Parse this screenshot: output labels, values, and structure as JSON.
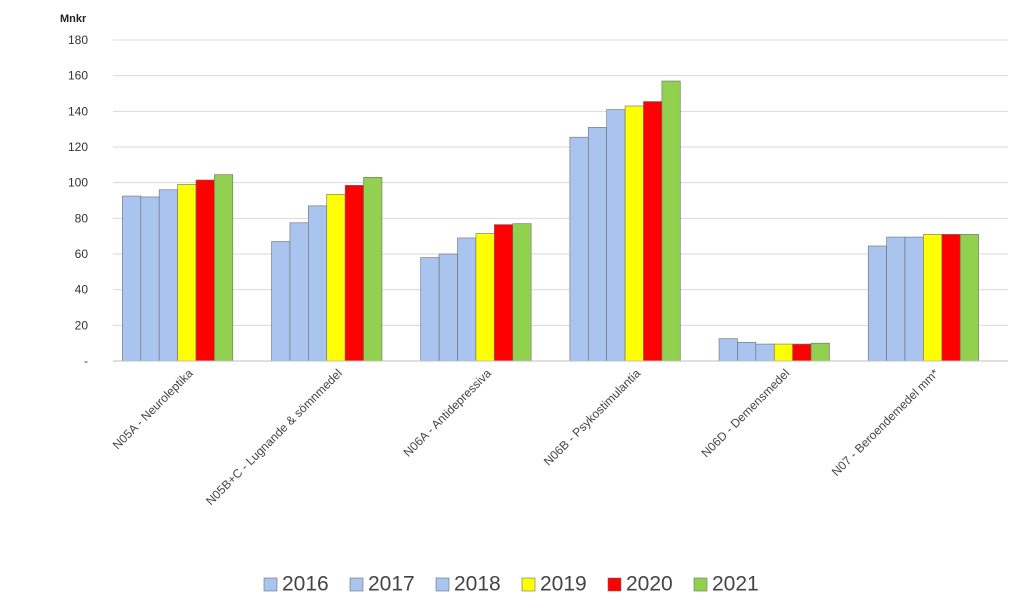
{
  "chart_data": {
    "type": "bar",
    "ylabel": "Mnkr",
    "ylim": [
      0,
      180
    ],
    "yticks": [
      0,
      20,
      40,
      60,
      80,
      100,
      120,
      140,
      160,
      180
    ],
    "ytick_labels": [
      "-",
      "20",
      "40",
      "60",
      "80",
      "100",
      "120",
      "140",
      "160",
      "180"
    ],
    "grid": true,
    "legend_position": "bottom",
    "categories": [
      "N05A - Neuroleptika",
      "N05B+C - Lugnande & sömnmedel",
      "N06A - Antidepressiva",
      "N06B - Psykostimulantia",
      "N06D - Demensmedel",
      "N07 - Beroendemedel mm*"
    ],
    "series": [
      {
        "name": "2016",
        "color": "#a9c4ef",
        "values": [
          92.5,
          67,
          58,
          125.5,
          12.5,
          64.5
        ]
      },
      {
        "name": "2017",
        "color": "#a9c4ef",
        "values": [
          92,
          77.5,
          60,
          131,
          10.5,
          69.5
        ]
      },
      {
        "name": "2018",
        "color": "#a9c4ef",
        "values": [
          96,
          87,
          69,
          141,
          9.5,
          69.5
        ]
      },
      {
        "name": "2019",
        "color": "#ffff00",
        "values": [
          99,
          93.5,
          71.5,
          143,
          9.5,
          71
        ]
      },
      {
        "name": "2020",
        "color": "#ff0000",
        "values": [
          101.5,
          98.5,
          76.5,
          145.5,
          9.5,
          71
        ]
      },
      {
        "name": "2021",
        "color": "#92d050",
        "values": [
          104.5,
          103,
          77,
          157,
          10,
          71
        ]
      }
    ]
  }
}
